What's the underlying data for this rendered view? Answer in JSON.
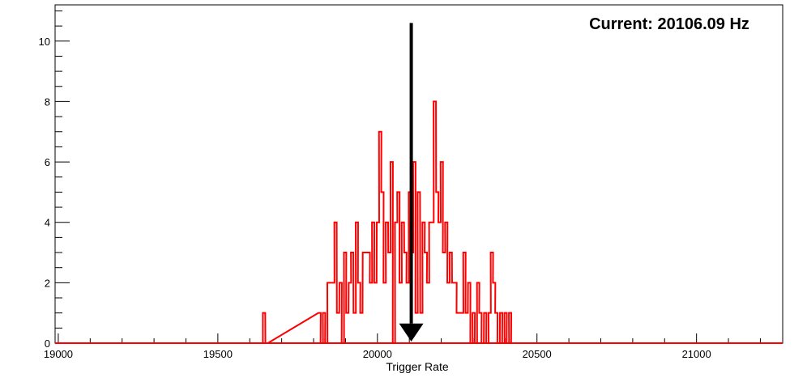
{
  "chart_data": {
    "type": "histogram-step",
    "title": "",
    "xlabel": "Trigger Rate",
    "ylabel": "",
    "xlim": [
      18990,
      21270
    ],
    "ylim": [
      0,
      11.2
    ],
    "x_major_ticks": [
      19000,
      19500,
      20000,
      20500,
      21000
    ],
    "x_tick_labels": [
      "19000",
      "19500",
      "20000",
      "20500",
      "21000"
    ],
    "y_major_ticks": [
      0,
      2,
      4,
      6,
      8,
      10
    ],
    "y_tick_labels": [
      "0",
      "2",
      "4",
      "6",
      "8",
      "10"
    ],
    "grid": false,
    "legend": "none",
    "series": [
      {
        "color": "#ff0000",
        "x": [
          19641,
          19649,
          19815,
          19822,
          19829,
          19836,
          19843,
          19851,
          19858,
          19865,
          19873,
          19881,
          19888,
          19895,
          19902,
          19910,
          19917,
          19925,
          19932,
          19939,
          19946,
          19954,
          19961,
          19969,
          19976,
          19983,
          19990,
          19998,
          20005,
          20012,
          20019,
          20026,
          20034,
          20041,
          20048,
          20055,
          20062,
          20069,
          20076,
          20084,
          20091,
          20098,
          20105,
          20112,
          20119,
          20126,
          20134,
          20141,
          20148,
          20155,
          20162,
          20169,
          20176,
          20184,
          20191,
          20198,
          20205,
          20212,
          20219,
          20226,
          20234,
          20241,
          20248,
          20255,
          20262,
          20269,
          20276,
          20284,
          20291,
          20298,
          20305,
          20312,
          20319,
          20326,
          20334,
          20341,
          20348,
          20355,
          20362,
          20369,
          20376,
          20384,
          20391,
          20398,
          20405,
          20412,
          20419,
          20426,
          20434,
          20441,
          20448,
          20455,
          20462,
          20469,
          20476,
          20484,
          20491,
          20498,
          20505
        ],
        "values": [
          1,
          0,
          1,
          0,
          1,
          0,
          2,
          2,
          2,
          4,
          1,
          2,
          0,
          3,
          1,
          2,
          3,
          1,
          4,
          2,
          1,
          3,
          3,
          3,
          2,
          4,
          2,
          4,
          7,
          5,
          2,
          4,
          3,
          6,
          0,
          4,
          5,
          2,
          4,
          3,
          2,
          5,
          3,
          6,
          1,
          5,
          1,
          4,
          3,
          2,
          4,
          4,
          8,
          5,
          4,
          6,
          3,
          4,
          2,
          3,
          2,
          2,
          1,
          1,
          1,
          3,
          1,
          2,
          0,
          1,
          0,
          2,
          1,
          0,
          1,
          0,
          1,
          3,
          2,
          1,
          0,
          1,
          0,
          1,
          0,
          1,
          0,
          0,
          0,
          0,
          0,
          0,
          0,
          0,
          0,
          0,
          0,
          0,
          0
        ],
        "bin_width": 7.5
      }
    ],
    "annotations": {
      "current_text": "Current: 20106.09 Hz",
      "marker_value": 20106.09,
      "marker_top_y": 10.6
    }
  }
}
